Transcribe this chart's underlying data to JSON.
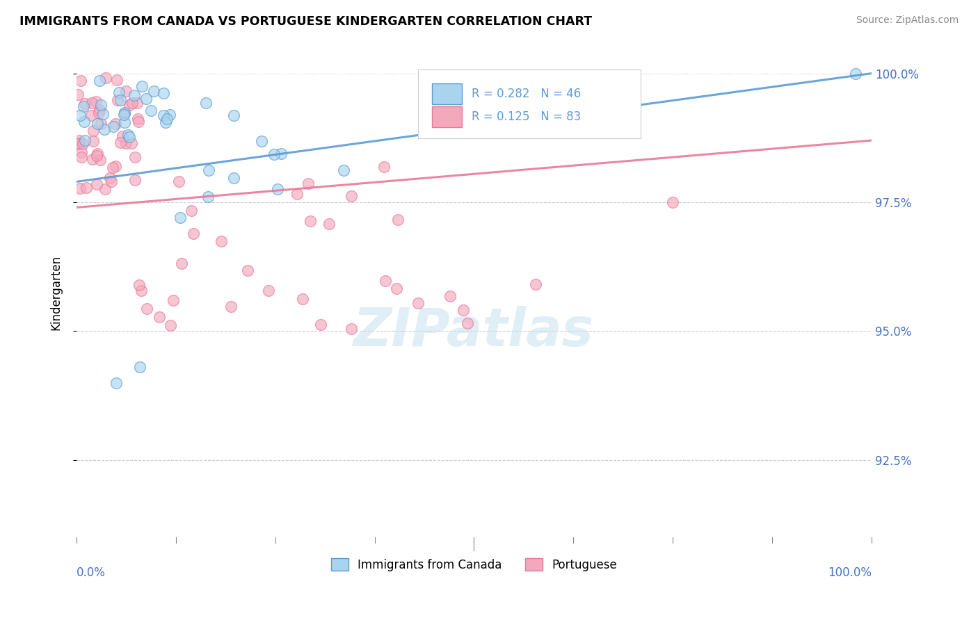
{
  "title": "IMMIGRANTS FROM CANADA VS PORTUGUESE KINDERGARTEN CORRELATION CHART",
  "source": "Source: ZipAtlas.com",
  "ylabel": "Kindergarten",
  "legend_canada": "Immigrants from Canada",
  "legend_portuguese": "Portuguese",
  "canada_R": 0.282,
  "canada_N": 46,
  "portuguese_R": 0.125,
  "portuguese_N": 83,
  "canada_color": "#a8d4ee",
  "portuguese_color": "#f4a8bc",
  "canada_line_color": "#5b9bd5",
  "portuguese_line_color": "#e8799a",
  "ytick_values": [
    0.925,
    0.95,
    0.975,
    1.0
  ],
  "ytick_labels": [
    "92.5%",
    "95.0%",
    "97.5%",
    "100.0%"
  ],
  "ymin": 0.91,
  "ymax": 1.005,
  "xmin": 0.0,
  "xmax": 1.0,
  "canada_line_start_y": 0.979,
  "canada_line_end_y": 1.0,
  "portuguese_line_start_y": 0.974,
  "portuguese_line_end_y": 0.987
}
